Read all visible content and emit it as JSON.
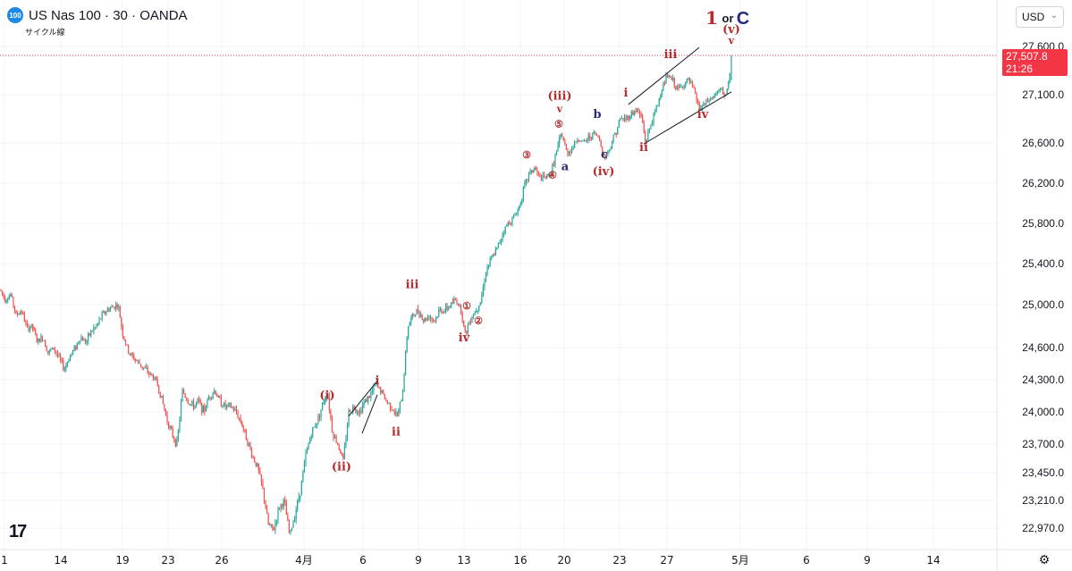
{
  "header": {
    "badge": "100",
    "title": "US Nas 100 · 30 · OANDA",
    "subtitle": "サイクル線"
  },
  "toolbar": {
    "currency": "USD"
  },
  "price_tag": {
    "price": "27,507.8",
    "countdown": "21:26"
  },
  "colors": {
    "up": "#26a69a",
    "down": "#ef5350",
    "label_red": "#b22d2d",
    "label_navy": "#2a2a7a",
    "price_line": "#f23645"
  },
  "big_label": {
    "one": "1",
    "or": "or",
    "c": "C"
  },
  "chart_data": {
    "type": "candlestick",
    "title": "US Nas 100 · 30 · OANDA",
    "ylim": [
      22800,
      27800
    ],
    "last_price": 27507.8,
    "y_ticks": [
      "27,600.0",
      "27,100.0",
      "26,600.0",
      "26,200.0",
      "25,800.0",
      "25,400.0",
      "25,000.0",
      "24,600.0",
      "24,300.0",
      "24,000.0",
      "23,700.0",
      "23,450.0",
      "23,210.0",
      "22,970.0"
    ],
    "x_ticks": [
      "1",
      "14",
      "19",
      "23",
      "26",
      "4月",
      "6",
      "9",
      "13",
      "16",
      "20",
      "23",
      "27",
      "5月",
      "6",
      "9",
      "14"
    ],
    "path": [
      [
        0,
        25150
      ],
      [
        6,
        25050
      ],
      [
        12,
        25100
      ],
      [
        18,
        24900
      ],
      [
        24,
        24950
      ],
      [
        30,
        24780
      ],
      [
        36,
        24800
      ],
      [
        42,
        24650
      ],
      [
        48,
        24700
      ],
      [
        54,
        24550
      ],
      [
        60,
        24600
      ],
      [
        66,
        24500
      ],
      [
        72,
        24400
      ],
      [
        78,
        24520
      ],
      [
        84,
        24600
      ],
      [
        90,
        24700
      ],
      [
        96,
        24650
      ],
      [
        102,
        24750
      ],
      [
        108,
        24800
      ],
      [
        114,
        24900
      ],
      [
        120,
        24950
      ],
      [
        126,
        24980
      ],
      [
        132,
        25000
      ],
      [
        138,
        24700
      ],
      [
        144,
        24550
      ],
      [
        150,
        24500
      ],
      [
        156,
        24450
      ],
      [
        162,
        24400
      ],
      [
        168,
        24350
      ],
      [
        174,
        24300
      ],
      [
        180,
        24150
      ],
      [
        186,
        23950
      ],
      [
        192,
        23800
      ],
      [
        198,
        23700
      ],
      [
        204,
        24200
      ],
      [
        210,
        24100
      ],
      [
        216,
        24050
      ],
      [
        222,
        24100
      ],
      [
        228,
        24000
      ],
      [
        234,
        24150
      ],
      [
        240,
        24200
      ],
      [
        246,
        24100
      ],
      [
        252,
        24050
      ],
      [
        258,
        24050
      ],
      [
        264,
        24000
      ],
      [
        270,
        23900
      ],
      [
        276,
        23750
      ],
      [
        282,
        23600
      ],
      [
        288,
        23500
      ],
      [
        294,
        23300
      ],
      [
        300,
        23000
      ],
      [
        306,
        22950
      ],
      [
        312,
        23150
      ],
      [
        318,
        23200
      ],
      [
        324,
        22900
      ],
      [
        330,
        23100
      ],
      [
        336,
        23300
      ],
      [
        342,
        23600
      ],
      [
        348,
        23800
      ],
      [
        354,
        23900
      ],
      [
        360,
        24050
      ],
      [
        366,
        24200
      ],
      [
        372,
        23800
      ],
      [
        378,
        23700
      ],
      [
        384,
        23550
      ],
      [
        390,
        24000
      ],
      [
        396,
        24050
      ],
      [
        402,
        24000
      ],
      [
        408,
        24100
      ],
      [
        414,
        24150
      ],
      [
        420,
        24250
      ],
      [
        426,
        24200
      ],
      [
        432,
        24100
      ],
      [
        438,
        24050
      ],
      [
        444,
        23950
      ],
      [
        450,
        24150
      ],
      [
        456,
        24800
      ],
      [
        462,
        24900
      ],
      [
        468,
        24950
      ],
      [
        474,
        24850
      ],
      [
        480,
        24900
      ],
      [
        486,
        24850
      ],
      [
        492,
        24950
      ],
      [
        498,
        24950
      ],
      [
        504,
        25000
      ],
      [
        510,
        25050
      ],
      [
        516,
        24950
      ],
      [
        520,
        24720
      ],
      [
        526,
        24870
      ],
      [
        532,
        24950
      ],
      [
        538,
        25050
      ],
      [
        544,
        25350
      ],
      [
        550,
        25450
      ],
      [
        556,
        25550
      ],
      [
        562,
        25700
      ],
      [
        568,
        25800
      ],
      [
        574,
        25850
      ],
      [
        580,
        25950
      ],
      [
        586,
        26150
      ],
      [
        592,
        26300
      ],
      [
        598,
        26350
      ],
      [
        604,
        26250
      ],
      [
        610,
        26250
      ],
      [
        616,
        26300
      ],
      [
        622,
        26500
      ],
      [
        628,
        26700
      ],
      [
        634,
        26500
      ],
      [
        640,
        26550
      ],
      [
        646,
        26650
      ],
      [
        652,
        26600
      ],
      [
        658,
        26650
      ],
      [
        664,
        26700
      ],
      [
        670,
        26650
      ],
      [
        676,
        26450
      ],
      [
        682,
        26550
      ],
      [
        688,
        26700
      ],
      [
        694,
        26850
      ],
      [
        700,
        26850
      ],
      [
        706,
        26900
      ],
      [
        712,
        26950
      ],
      [
        718,
        26850
      ],
      [
        722,
        26600
      ],
      [
        728,
        26800
      ],
      [
        734,
        26950
      ],
      [
        740,
        27150
      ],
      [
        746,
        27300
      ],
      [
        752,
        27250
      ],
      [
        758,
        27150
      ],
      [
        764,
        27200
      ],
      [
        770,
        27250
      ],
      [
        776,
        27150
      ],
      [
        782,
        26950
      ],
      [
        788,
        27000
      ],
      [
        794,
        27050
      ],
      [
        800,
        27100
      ],
      [
        806,
        27150
      ],
      [
        812,
        27100
      ],
      [
        816,
        27250
      ],
      [
        818,
        27507.8
      ]
    ]
  },
  "wave_labels": [
    {
      "text": "(i)",
      "price": 24120,
      "x": 366,
      "color": "label_red",
      "size": 13
    },
    {
      "text": "(ii)",
      "price": 23470,
      "x": 382,
      "color": "label_red",
      "size": 13
    },
    {
      "text": "i",
      "price": 24260,
      "x": 422,
      "color": "label_red",
      "size": 13
    },
    {
      "text": "ii",
      "price": 23780,
      "x": 443,
      "color": "label_red",
      "size": 13
    },
    {
      "text": "iii",
      "price": 25160,
      "x": 461,
      "color": "label_red",
      "size": 13
    },
    {
      "text": "iv",
      "price": 24660,
      "x": 519,
      "color": "label_red",
      "size": 13
    },
    {
      "text": "①",
      "price": 24960,
      "x": 522,
      "color": "label_red",
      "size": 11
    },
    {
      "text": "②",
      "price": 24820,
      "x": 535,
      "color": "label_red",
      "size": 11
    },
    {
      "text": "③",
      "price": 26450,
      "x": 589,
      "color": "label_red",
      "size": 11
    },
    {
      "text": "④",
      "price": 26250,
      "x": 618,
      "color": "label_red",
      "size": 11
    },
    {
      "text": "⑤",
      "price": 26760,
      "x": 625,
      "color": "label_red",
      "size": 11
    },
    {
      "text": "(iii)",
      "price": 27050,
      "x": 626,
      "color": "label_red",
      "size": 13
    },
    {
      "text": "v",
      "price": 26920,
      "x": 626,
      "color": "label_red",
      "size": 11
    },
    {
      "text": "a",
      "price": 26330,
      "x": 632,
      "color": "label_navy",
      "size": 13
    },
    {
      "text": "b",
      "price": 26860,
      "x": 668,
      "color": "label_navy",
      "size": 13
    },
    {
      "text": "c",
      "price": 26450,
      "x": 676,
      "color": "label_navy",
      "size": 13
    },
    {
      "text": "(iv)",
      "price": 26280,
      "x": 675,
      "color": "label_red",
      "size": 13
    },
    {
      "text": "i",
      "price": 27080,
      "x": 700,
      "color": "label_red",
      "size": 13
    },
    {
      "text": "ii",
      "price": 26520,
      "x": 720,
      "color": "label_red",
      "size": 13
    },
    {
      "text": "iii",
      "price": 27480,
      "x": 750,
      "color": "label_red",
      "size": 13
    },
    {
      "text": "iv",
      "price": 26860,
      "x": 786,
      "color": "label_red",
      "size": 13
    },
    {
      "text": "(v)",
      "price": 27740,
      "x": 818,
      "color": "label_red",
      "size": 13
    },
    {
      "text": "v",
      "price": 27630,
      "x": 818,
      "color": "label_red",
      "size": 11
    }
  ]
}
